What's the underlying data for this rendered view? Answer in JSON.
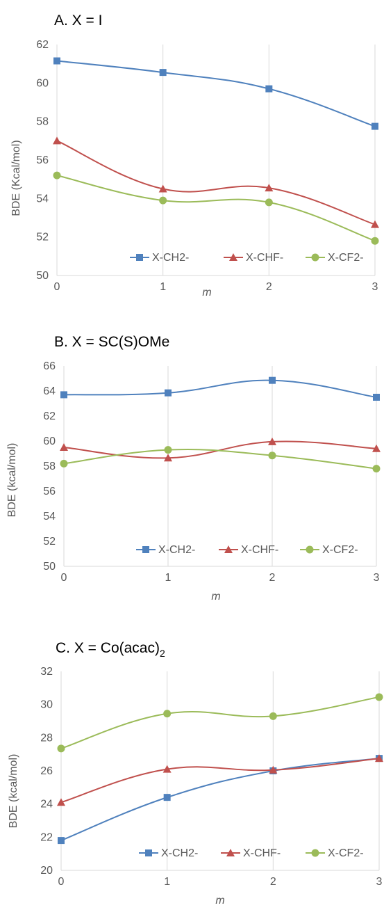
{
  "chart_data": [
    {
      "type": "line",
      "title": "A. X = I",
      "title_sub": "",
      "xlabel": "m",
      "ylabel": "BDE (Kcal/mol)",
      "x": [
        0,
        1,
        2,
        3
      ],
      "xlim": [
        0,
        3
      ],
      "ylim": [
        50,
        62
      ],
      "yticks": [
        50,
        52,
        54,
        56,
        58,
        60,
        62
      ],
      "smooth": true,
      "grid": "vertical",
      "legend": "bottom-right",
      "series": [
        {
          "name": "X-CH2-",
          "values": [
            61.15,
            60.55,
            59.7,
            57.75
          ],
          "color": "#4f81bd",
          "marker": "square"
        },
        {
          "name": "X-CHF-",
          "values": [
            57.0,
            54.5,
            54.55,
            52.65
          ],
          "color": "#c0504d",
          "marker": "triangle"
        },
        {
          "name": "X-CF2-",
          "values": [
            55.2,
            53.9,
            53.8,
            51.8
          ],
          "color": "#9bbb59",
          "marker": "circle"
        }
      ]
    },
    {
      "type": "line",
      "title": "B. X = SC(S)OMe",
      "title_sub": "",
      "xlabel": "m",
      "ylabel": "BDE (kcal/mol)",
      "x": [
        0,
        1,
        2,
        3
      ],
      "xlim": [
        0,
        3
      ],
      "ylim": [
        50,
        66
      ],
      "yticks": [
        50,
        52,
        54,
        56,
        58,
        60,
        62,
        64,
        66
      ],
      "smooth": true,
      "grid": "vertical",
      "legend": "bottom-right",
      "series": [
        {
          "name": "X-CH2-",
          "values": [
            63.7,
            63.85,
            64.85,
            63.5
          ],
          "color": "#4f81bd",
          "marker": "square"
        },
        {
          "name": "X-CHF-",
          "values": [
            59.5,
            58.65,
            59.95,
            59.4
          ],
          "color": "#c0504d",
          "marker": "triangle"
        },
        {
          "name": "X-CF2-",
          "values": [
            58.2,
            59.3,
            58.85,
            57.8
          ],
          "color": "#9bbb59",
          "marker": "circle"
        }
      ]
    },
    {
      "type": "line",
      "title": "C. X = Co(acac)",
      "title_sub": "2",
      "xlabel": "m",
      "ylabel": "BDE (kcal/mol)",
      "x": [
        0,
        1,
        2,
        3
      ],
      "xlim": [
        0,
        3
      ],
      "ylim": [
        20,
        32
      ],
      "yticks": [
        20,
        22,
        24,
        26,
        28,
        30,
        32
      ],
      "smooth": true,
      "grid": "vertical",
      "legend": "bottom-right",
      "series": [
        {
          "name": "X-CH2-",
          "values": [
            21.8,
            24.4,
            26.0,
            26.75
          ],
          "color": "#4f81bd",
          "marker": "square"
        },
        {
          "name": "X-CHF-",
          "values": [
            24.1,
            26.1,
            26.05,
            26.75
          ],
          "color": "#c0504d",
          "marker": "triangle"
        },
        {
          "name": "X-CF2-",
          "values": [
            27.35,
            29.45,
            29.3,
            30.45
          ],
          "color": "#9bbb59",
          "marker": "circle"
        }
      ]
    }
  ]
}
